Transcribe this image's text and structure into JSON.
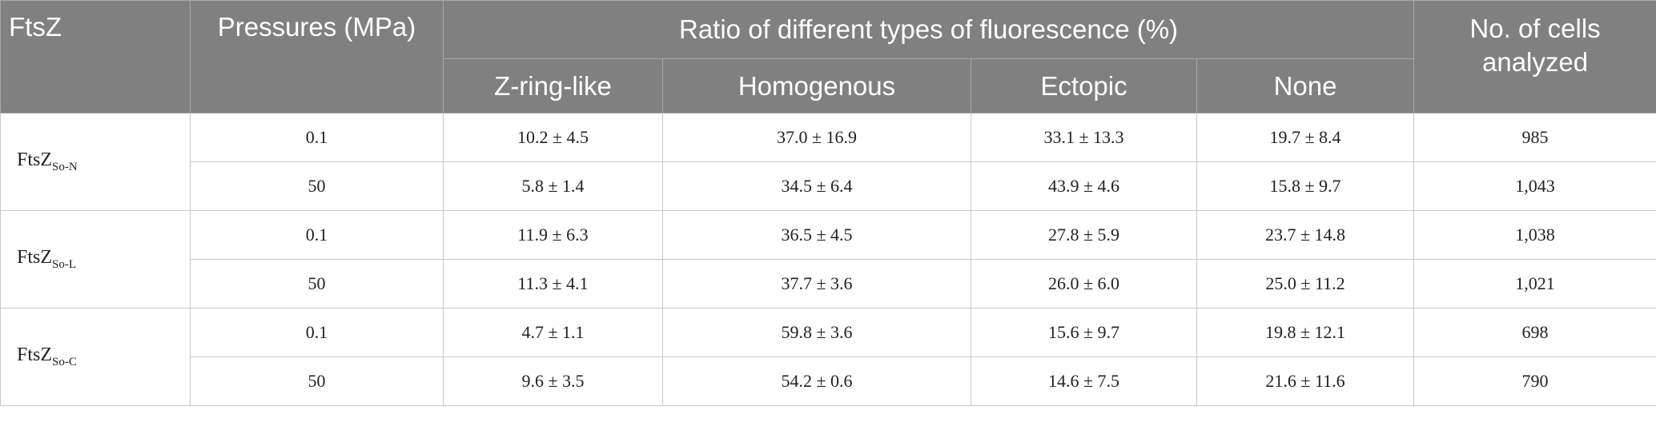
{
  "header": {
    "ftsz": "FtsZ",
    "pressures": "Pressures (MPa)",
    "ratio": "Ratio of different types of fluorescence (%)",
    "types": [
      "Z-ring-like",
      "Homogenous",
      "Ectopic",
      "None"
    ],
    "cells": "No. of cells analyzed"
  },
  "groups": [
    {
      "label": {
        "main": "FtsZ",
        "sub": "So-N"
      },
      "rows": [
        {
          "pressure": "0.1",
          "ratios": [
            "10.2 ± 4.5",
            "37.0 ± 16.9",
            "33.1 ± 13.3",
            "19.7 ± 8.4"
          ],
          "cells": "985"
        },
        {
          "pressure": "50",
          "ratios": [
            "5.8 ± 1.4",
            "34.5 ± 6.4",
            "43.9 ± 4.6",
            "15.8 ± 9.7"
          ],
          "cells": "1,043"
        }
      ]
    },
    {
      "label": {
        "main": "FtsZ",
        "sub": "So-L"
      },
      "rows": [
        {
          "pressure": "0.1",
          "ratios": [
            "11.9 ± 6.3",
            "36.5 ± 4.5",
            "27.8 ± 5.9",
            "23.7 ± 14.8"
          ],
          "cells": "1,038"
        },
        {
          "pressure": "50",
          "ratios": [
            "11.3 ± 4.1",
            "37.7 ± 3.6",
            "26.0 ± 6.0",
            "25.0 ± 11.2"
          ],
          "cells": "1,021"
        }
      ]
    },
    {
      "label": {
        "main": "FtsZ",
        "sub": "So-C"
      },
      "rows": [
        {
          "pressure": "0.1",
          "ratios": [
            "4.7 ± 1.1",
            "59.8 ± 3.6",
            "15.6 ± 9.7",
            "19.8 ± 12.1"
          ],
          "cells": "698"
        },
        {
          "pressure": "50",
          "ratios": [
            "9.6 ± 3.5",
            "54.2 ± 0.6",
            "14.6 ± 7.5",
            "21.6 ± 11.6"
          ],
          "cells": "790"
        }
      ]
    }
  ]
}
